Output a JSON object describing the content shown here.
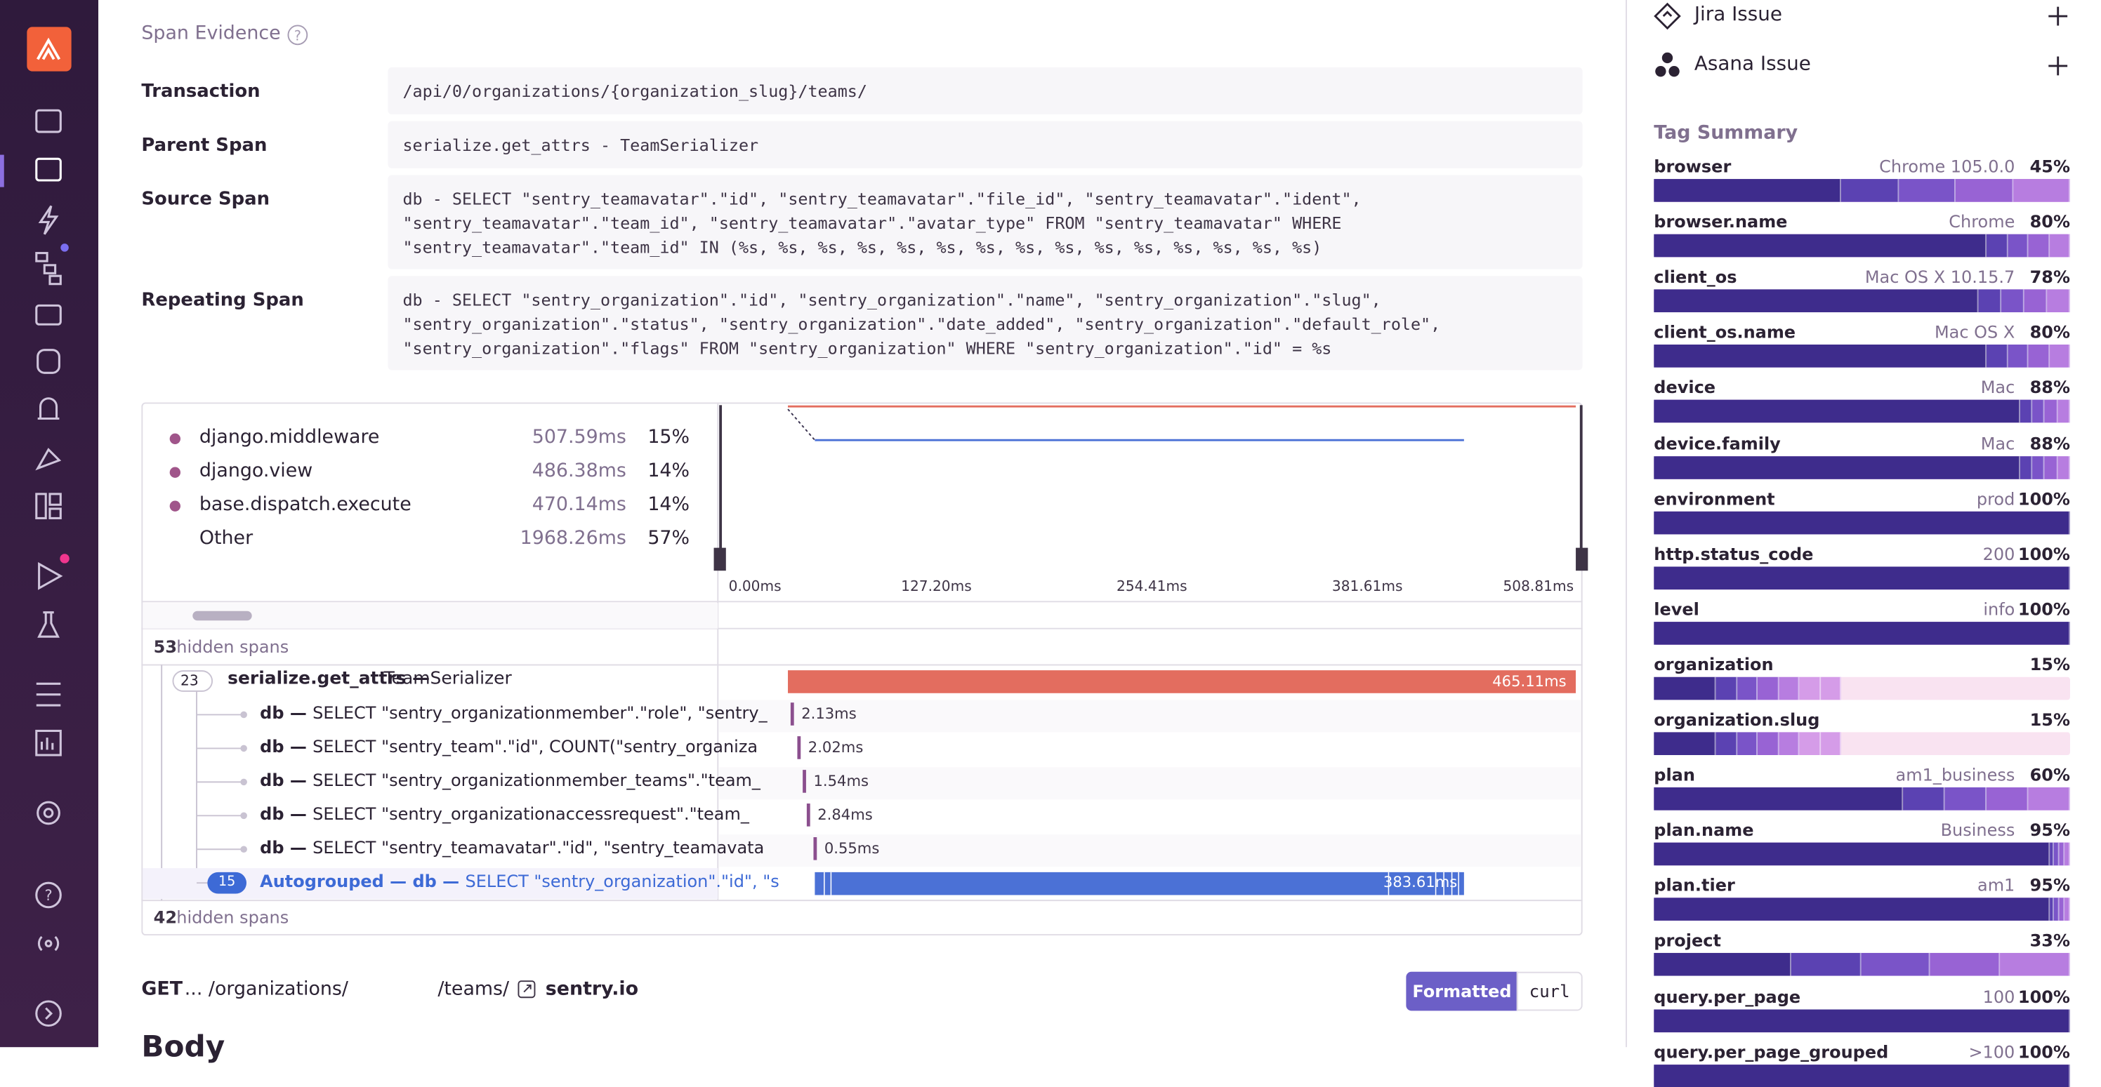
{
  "span_evidence": {
    "title": "Span Evidence",
    "rows": [
      {
        "label": "Transaction",
        "value": "/api/0/organizations/{organization_slug}/teams/"
      },
      {
        "label": "Parent Span",
        "value": "serialize.get_attrs - TeamSerializer"
      },
      {
        "label": "Source Span",
        "value": "db - SELECT \"sentry_teamavatar\".\"id\", \"sentry_teamavatar\".\"file_id\", \"sentry_teamavatar\".\"ident\",\n\"sentry_teamavatar\".\"team_id\", \"sentry_teamavatar\".\"avatar_type\" FROM \"sentry_teamavatar\" WHERE\n\"sentry_teamavatar\".\"team_id\" IN (%s, %s, %s, %s, %s, %s, %s, %s, %s, %s, %s, %s, %s, %s, %s)"
      },
      {
        "label": "Repeating Span",
        "value": "db - SELECT \"sentry_organization\".\"id\", \"sentry_organization\".\"name\", \"sentry_organization\".\"slug\",\n\"sentry_organization\".\"status\", \"sentry_organization\".\"date_added\", \"sentry_organization\".\"default_role\",\n\"sentry_organization\".\"flags\" FROM \"sentry_organization\" WHERE \"sentry_organization\".\"id\" = %s"
      }
    ]
  },
  "trace": {
    "legend": [
      {
        "name": "django.middleware",
        "duration": "507.59ms",
        "percent": "15%"
      },
      {
        "name": "django.view",
        "duration": "486.38ms",
        "percent": "14%"
      },
      {
        "name": "base.dispatch.execute",
        "duration": "470.14ms",
        "percent": "14%"
      },
      {
        "name": "Other",
        "duration": "1968.26ms",
        "percent": "57%"
      }
    ],
    "axis_labels": [
      "0.00ms",
      "127.20ms",
      "254.41ms",
      "381.61ms",
      "508.81ms"
    ],
    "hidden_top": {
      "count": "53",
      "label": "hidden spans"
    },
    "parent": {
      "count": "23",
      "op": "serialize.get_attrs —",
      "description": "TeamSerializer",
      "duration": "465.11ms"
    },
    "children": [
      {
        "op": "db —",
        "description": "SELECT \"sentry_organizationmember\".\"role\", \"sentry_",
        "duration": "2.13ms"
      },
      {
        "op": "db —",
        "description": "SELECT \"sentry_team\".\"id\", COUNT(\"sentry_organiza",
        "duration": "2.02ms"
      },
      {
        "op": "db —",
        "description": "SELECT \"sentry_organizationmember_teams\".\"team_",
        "duration": "1.54ms"
      },
      {
        "op": "db —",
        "description": "SELECT \"sentry_organizationaccessrequest\".\"team_",
        "duration": "2.84ms"
      },
      {
        "op": "db —",
        "description": "SELECT \"sentry_teamavatar\".\"id\", \"sentry_teamavata",
        "duration": "0.55ms"
      }
    ],
    "autogrouped": {
      "count": "15",
      "op": "Autogrouped — db —",
      "description": "SELECT \"sentry_organization\".\"id\", \"s",
      "duration": "383.61ms"
    },
    "hidden_bottom": {
      "count": "42",
      "label": "hidden spans"
    }
  },
  "request": {
    "method": "GET",
    "path_start": "... /organizations/",
    "path_end": "/teams/",
    "host": "sentry.io",
    "buttons": [
      "Formatted",
      "curl"
    ],
    "body_title": "Body"
  },
  "issues": [
    "Jira Issue",
    "Asana Issue"
  ],
  "tag_summary": {
    "title": "Tag Summary",
    "tags": [
      {
        "key": "browser",
        "value": "Chrome 105.0.0",
        "percent": "45%"
      },
      {
        "key": "browser.name",
        "value": "Chrome",
        "percent": "80%"
      },
      {
        "key": "client_os",
        "value": "Mac OS X 10.15.7",
        "percent": "78%"
      },
      {
        "key": "client_os.name",
        "value": "Mac OS X",
        "percent": "80%"
      },
      {
        "key": "device",
        "value": "Mac",
        "percent": "88%"
      },
      {
        "key": "device.family",
        "value": "Mac",
        "percent": "88%"
      },
      {
        "key": "environment",
        "value": "prod",
        "percent": "100%"
      },
      {
        "key": "http.status_code",
        "value": "200",
        "percent": "100%"
      },
      {
        "key": "level",
        "value": "info",
        "percent": "100%"
      },
      {
        "key": "organization",
        "percent": "15%"
      },
      {
        "key": "organization.slug",
        "percent": "15%"
      },
      {
        "key": "plan",
        "value": "am1_business",
        "percent": "60%"
      },
      {
        "key": "plan.name",
        "value": "Business",
        "percent": "95%"
      },
      {
        "key": "plan.tier",
        "value": "am1",
        "percent": "95%"
      },
      {
        "key": "project",
        "percent": "33%"
      },
      {
        "key": "query.per_page",
        "value": "100",
        "percent": "100%"
      },
      {
        "key": "query.per_page_grouped",
        "value": ">100",
        "percent": "100%"
      }
    ]
  }
}
